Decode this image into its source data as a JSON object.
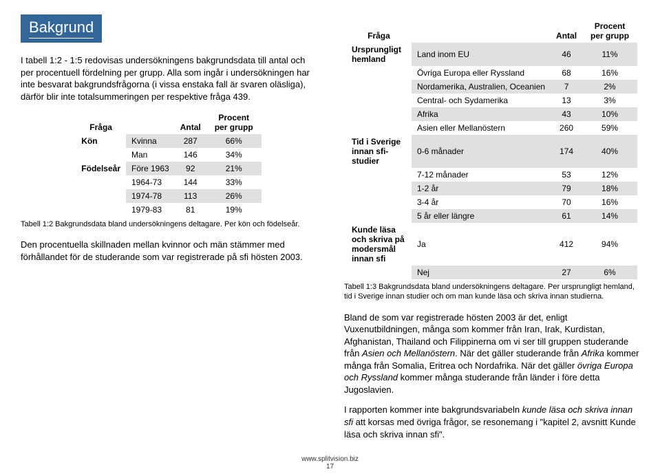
{
  "title": "Bakgrund",
  "left": {
    "para1": "I tabell 1:2 - 1:5 redovisas undersökningens bakgrundsdata till antal och per procentuell fördelning per grupp. Alla som ingår i undersökningen har inte besvarat bakgrundsfrågorna (i vissa enstaka fall är svaren oläsliga), därför blir inte totalsummeringen per respektive fråga 439.",
    "table": {
      "headers": [
        "Fråga",
        "",
        "Antal",
        "Procent per grupp"
      ],
      "rows": [
        {
          "h": "Kön",
          "sub": "Kvinna",
          "a": "287",
          "p": "66%",
          "shade": 1
        },
        {
          "h": "",
          "sub": "Man",
          "a": "146",
          "p": "34%",
          "shade": 0
        },
        {
          "h": "Födelseår",
          "sub": "Före 1963",
          "a": "92",
          "p": "21%",
          "shade": 1
        },
        {
          "h": "",
          "sub": "1964-73",
          "a": "144",
          "p": "33%",
          "shade": 0
        },
        {
          "h": "",
          "sub": "1974-78",
          "a": "113",
          "p": "26%",
          "shade": 1
        },
        {
          "h": "",
          "sub": "1979-83",
          "a": "81",
          "p": "19%",
          "shade": 0
        }
      ]
    },
    "caption": "Tabell 1:2 Bakgrundsdata bland undersökningens deltagare. Per kön och födelseår.",
    "para2": "Den procentuella skillnaden mellan kvinnor och män stämmer med förhållandet för de studerande som var registrerade på sfi hösten 2003."
  },
  "right": {
    "table": {
      "headers": [
        "Fråga",
        "",
        "Antal",
        "Procent per grupp"
      ],
      "rows": [
        {
          "h": "Ursprungligt hemland",
          "sub": "Land inom EU",
          "a": "46",
          "p": "11%",
          "shade": 1
        },
        {
          "h": "",
          "sub": "Övriga Europa eller Ryssland",
          "a": "68",
          "p": "16%",
          "shade": 0
        },
        {
          "h": "",
          "sub": "Nordamerika, Australien, Oceanien",
          "a": "7",
          "p": "2%",
          "shade": 1
        },
        {
          "h": "",
          "sub": "Central- och Sydamerika",
          "a": "13",
          "p": "3%",
          "shade": 0
        },
        {
          "h": "",
          "sub": "Afrika",
          "a": "43",
          "p": "10%",
          "shade": 1
        },
        {
          "h": "",
          "sub": "Asien eller Mellanöstern",
          "a": "260",
          "p": "59%",
          "shade": 0
        },
        {
          "h": "Tid i Sverige innan sfi-studier",
          "sub": "0-6 månader",
          "a": "174",
          "p": "40%",
          "shade": 1
        },
        {
          "h": "",
          "sub": "7-12 månader",
          "a": "53",
          "p": "12%",
          "shade": 0
        },
        {
          "h": "",
          "sub": "1-2 år",
          "a": "79",
          "p": "18%",
          "shade": 1
        },
        {
          "h": "",
          "sub": "3-4 år",
          "a": "70",
          "p": "16%",
          "shade": 0
        },
        {
          "h": "",
          "sub": "5 år eller längre",
          "a": "61",
          "p": "14%",
          "shade": 1
        },
        {
          "h": "Kunde läsa och skriva på modersmål innan sfi",
          "sub": "Ja",
          "a": "412",
          "p": "94%",
          "shade": 0
        },
        {
          "h": "",
          "sub": "Nej",
          "a": "27",
          "p": "6%",
          "shade": 1
        }
      ]
    },
    "caption": "Tabell 1:3 Bakgrundsdata bland undersökningens deltagare. Per ursprungligt hemland, tid i Sverige innan studier och om man kunde läsa och skriva innan studierna.",
    "para1a": "Bland de som var registrerade hösten 2003 är det, enligt Vuxenutbildningen, många som kommer från Iran, Irak, Kurdistan, Afghanistan, Thailand och Filippinerna om vi ser till gruppen studerande från ",
    "para1_em1": "Asien och Mellanöstern",
    "para1b": ". När det gäller studerande från ",
    "para1_em2": "Afrika",
    "para1c": " kommer många från Somalia, Eritrea och Nordafrika. När det gäller ",
    "para1_em3": "övriga Europa och Ryssland",
    "para1d": " kommer många studerande från länder i före detta Jugoslavien.",
    "para2a": "I rapporten kommer inte bakgrundsvariabeln ",
    "para2_em1": "kunde läsa och skriva innan sfi",
    "para2b": " att korsas med övriga frågor, se resonemang i \"kapitel 2, avsnitt Kunde läsa och skriva innan sfi\"."
  },
  "footer_url": "www.splitvision.biz",
  "footer_page": "17"
}
